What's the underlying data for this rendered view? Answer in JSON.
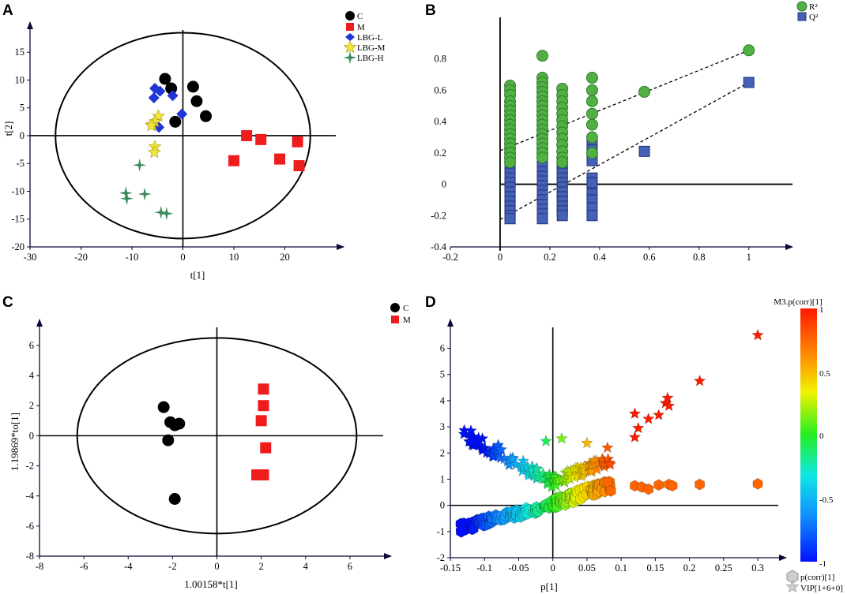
{
  "colors": {
    "C": "#000000",
    "M": "#ee1c1c",
    "LBG-L": "#1f36d6",
    "LBG-M": "#f2e43a",
    "LBG-H": "#3c8a5a",
    "R2": "#52b043",
    "R2_edge": "#2d7d2d",
    "Q2": "#4461b5",
    "Q2_edge": "#23357a"
  },
  "chart_data": [
    {
      "panel": "A",
      "type": "scatter",
      "xlabel": "t[1]",
      "ylabel": "t[2]",
      "xlim": [
        -30,
        30
      ],
      "ylim": [
        -20,
        19
      ],
      "xticks": [
        -30,
        -20,
        -10,
        0,
        10,
        20
      ],
      "yticks": [
        -20,
        -15,
        -10,
        -5,
        0,
        5,
        10,
        15
      ],
      "ellipse": {
        "cx": 0,
        "cy": 0,
        "rx": 25,
        "ry": 18.5
      },
      "legend": [
        "C",
        "M",
        "LBG-L",
        "LBG-M",
        "LBG-H"
      ],
      "series": [
        {
          "name": "C",
          "marker": "circle",
          "points": [
            [
              -3.5,
              10.2
            ],
            [
              -2.3,
              8.5
            ],
            [
              -1.5,
              2.5
            ],
            [
              2,
              8.8
            ],
            [
              2.7,
              6.2
            ],
            [
              4.5,
              3.5
            ]
          ]
        },
        {
          "name": "M",
          "marker": "square",
          "points": [
            [
              12.5,
              0
            ],
            [
              15.3,
              -0.7
            ],
            [
              10,
              -4.5
            ],
            [
              19,
              -4.2
            ],
            [
              22.5,
              -1.1
            ],
            [
              22.8,
              -5.4
            ]
          ]
        },
        {
          "name": "LBG-L",
          "marker": "diamond",
          "points": [
            [
              -5.5,
              8.5
            ],
            [
              -4.5,
              8
            ],
            [
              -5.7,
              6.8
            ],
            [
              -2,
              7.2
            ],
            [
              -0.2,
              3.9
            ],
            [
              -4.7,
              1.5
            ]
          ]
        },
        {
          "name": "LBG-M",
          "marker": "star",
          "points": [
            [
              -4.8,
              3.5
            ],
            [
              -5.5,
              2.5
            ],
            [
              -6,
              2
            ],
            [
              -5.5,
              -2
            ],
            [
              -5.6,
              -3
            ],
            [
              -6.2,
              1.8
            ]
          ]
        },
        {
          "name": "LBG-H",
          "marker": "star4",
          "points": [
            [
              -8.5,
              -5.3
            ],
            [
              -11.2,
              -10.3
            ],
            [
              -11,
              -11.3
            ],
            [
              -7.5,
              -10.5
            ],
            [
              -4.3,
              -13.8
            ],
            [
              -3.2,
              -14
            ]
          ]
        }
      ]
    },
    {
      "panel": "B",
      "type": "scatter",
      "xlabel": "",
      "ylabel": "",
      "xlim": [
        -0.2,
        1.15
      ],
      "ylim": [
        -0.4,
        1.0
      ],
      "xticks": [
        -0.2,
        0,
        0.2,
        0.4,
        0.6,
        0.8,
        1
      ],
      "yticks": [
        -0.4,
        -0.2,
        0,
        0.2,
        0.4,
        0.6,
        0.8
      ],
      "legend": [
        "R²",
        "Q²"
      ],
      "series": [
        {
          "name": "R²",
          "marker": "circle",
          "x": [
            0.04,
            0.17,
            0.25,
            0.37
          ],
          "ys": [
            [
              0.63,
              0.6,
              0.57,
              0.53,
              0.5,
              0.47,
              0.44,
              0.41,
              0.38,
              0.35,
              0.32,
              0.29,
              0.26,
              0.23,
              0.2,
              0.17,
              0.14
            ],
            [
              0.82,
              0.68,
              0.65,
              0.62,
              0.59,
              0.56,
              0.53,
              0.5,
              0.47,
              0.44,
              0.41,
              0.38,
              0.35,
              0.32,
              0.29,
              0.26,
              0.23,
              0.2,
              0.17
            ],
            [
              0.61,
              0.57,
              0.53,
              0.49,
              0.45,
              0.41,
              0.37,
              0.33,
              0.29,
              0.25,
              0.21,
              0.17,
              0.14
            ],
            [
              0.68,
              0.6,
              0.53,
              0.45,
              0.38,
              0.3,
              0.2
            ]
          ]
        },
        {
          "name": "R² (permutation end)",
          "marker": "circle",
          "points": [
            [
              0.58,
              0.59
            ],
            [
              1.0,
              0.855
            ]
          ]
        },
        {
          "name": "Q²",
          "marker": "square",
          "x": [
            0.04,
            0.17,
            0.25,
            0.37
          ],
          "ys": [
            [
              0.1,
              0.07,
              0.04,
              0.01,
              -0.02,
              -0.05,
              -0.08,
              -0.11,
              -0.14,
              -0.17,
              -0.2,
              -0.22
            ],
            [
              0.14,
              0.11,
              0.08,
              0.05,
              0.02,
              -0.01,
              -0.04,
              -0.07,
              -0.1,
              -0.13,
              -0.16,
              -0.19,
              -0.22
            ],
            [
              0.13,
              0.1,
              0.07,
              0.04,
              0.01,
              -0.02,
              -0.05,
              -0.08,
              -0.11,
              -0.14,
              -0.17,
              -0.2
            ],
            [
              0.27,
              0.22,
              0.15,
              0.04,
              0.01,
              -0.06,
              -0.1,
              -0.15,
              -0.2
            ]
          ]
        },
        {
          "name": "Q² (permutation end)",
          "marker": "square",
          "points": [
            [
              0.58,
              0.21
            ],
            [
              1.0,
              0.65
            ]
          ]
        }
      ],
      "regression_lines": [
        {
          "name": "R² fit",
          "from": [
            0,
            0.215
          ],
          "to": [
            1.0,
            0.855
          ]
        },
        {
          "name": "Q² fit",
          "from": [
            0,
            -0.225
          ],
          "to": [
            1.0,
            0.65
          ]
        }
      ]
    },
    {
      "panel": "C",
      "type": "scatter",
      "xlabel": "1.00158*t[1]",
      "ylabel": "1.19869*to[1]",
      "xlim": [
        -8,
        7.5
      ],
      "ylim": [
        -8,
        7.2
      ],
      "xticks": [
        -8,
        -6,
        -4,
        -2,
        0,
        2,
        4,
        6
      ],
      "yticks": [
        -8,
        -6,
        -4,
        -2,
        0,
        2,
        4,
        6
      ],
      "ellipse": {
        "cx": 0,
        "cy": 0,
        "rx": 6.3,
        "ry": 6.5
      },
      "legend": [
        "C",
        "M"
      ],
      "series": [
        {
          "name": "C",
          "marker": "circle",
          "points": [
            [
              -2.4,
              1.9
            ],
            [
              -2.1,
              0.9
            ],
            [
              -1.9,
              0.7
            ],
            [
              -1.7,
              0.8
            ],
            [
              -2.2,
              -0.3
            ],
            [
              -1.9,
              -4.2
            ]
          ]
        },
        {
          "name": "M",
          "marker": "square",
          "points": [
            [
              2.1,
              3.1
            ],
            [
              2.1,
              2
            ],
            [
              2,
              1
            ],
            [
              2.2,
              -0.8
            ],
            [
              1.8,
              -2.6
            ],
            [
              2.1,
              -2.6
            ]
          ]
        }
      ]
    },
    {
      "panel": "D",
      "type": "scatter",
      "xlabel": "p[1]",
      "ylabel": "",
      "xlim": [
        -0.15,
        0.33
      ],
      "ylim": [
        -2,
        6.8
      ],
      "xticks": [
        -0.15,
        -0.1,
        -0.05,
        0,
        0.05,
        0.1,
        0.15,
        0.2,
        0.25,
        0.3
      ],
      "yticks": [
        -2,
        -1,
        0,
        1,
        2,
        3,
        4,
        5,
        6
      ],
      "colorbar": {
        "title": "M3.p(corr)[1]",
        "ticks": [
          1,
          0.5,
          0,
          -0.5,
          -1
        ]
      },
      "legend": [
        "p(corr)[1]",
        "VIP[1+6+0]"
      ]
    }
  ]
}
